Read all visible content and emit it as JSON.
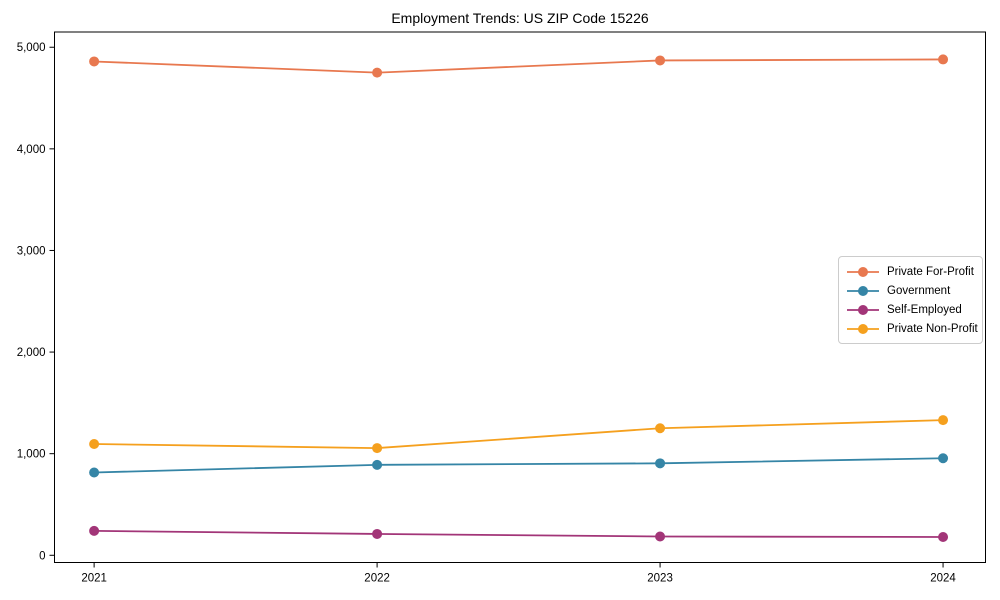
{
  "chart_data": {
    "type": "line",
    "title": "Employment Trends: US ZIP Code 15226",
    "xlabel": "",
    "ylabel": "",
    "x": [
      2021,
      2022,
      2023,
      2024
    ],
    "x_labels": [
      "2021",
      "2022",
      "2023",
      "2024"
    ],
    "series": [
      {
        "name": "Private For-Profit",
        "color": "#E8784F",
        "values": [
          4860,
          4750,
          4870,
          4880
        ]
      },
      {
        "name": "Government",
        "color": "#3585A6",
        "values": [
          815,
          890,
          905,
          955
        ]
      },
      {
        "name": "Self-Employed",
        "color": "#A23578",
        "values": [
          240,
          210,
          185,
          180
        ]
      },
      {
        "name": "Private Non-Profit",
        "color": "#F5A01E",
        "values": [
          1095,
          1055,
          1250,
          1330
        ]
      }
    ],
    "yticks": [
      0,
      1000,
      2000,
      3000,
      4000,
      5000
    ],
    "ytick_labels": [
      "0",
      "1,000",
      "2,000",
      "3,000",
      "4,000",
      "5,000"
    ],
    "xlim": [
      2020.86,
      2024.15
    ],
    "ylim": [
      -71,
      5150
    ],
    "grid": false,
    "legend_position": "center-right",
    "axis_color": "#000000",
    "text_color": "#000000",
    "legend_border_color": "#cccccc"
  }
}
